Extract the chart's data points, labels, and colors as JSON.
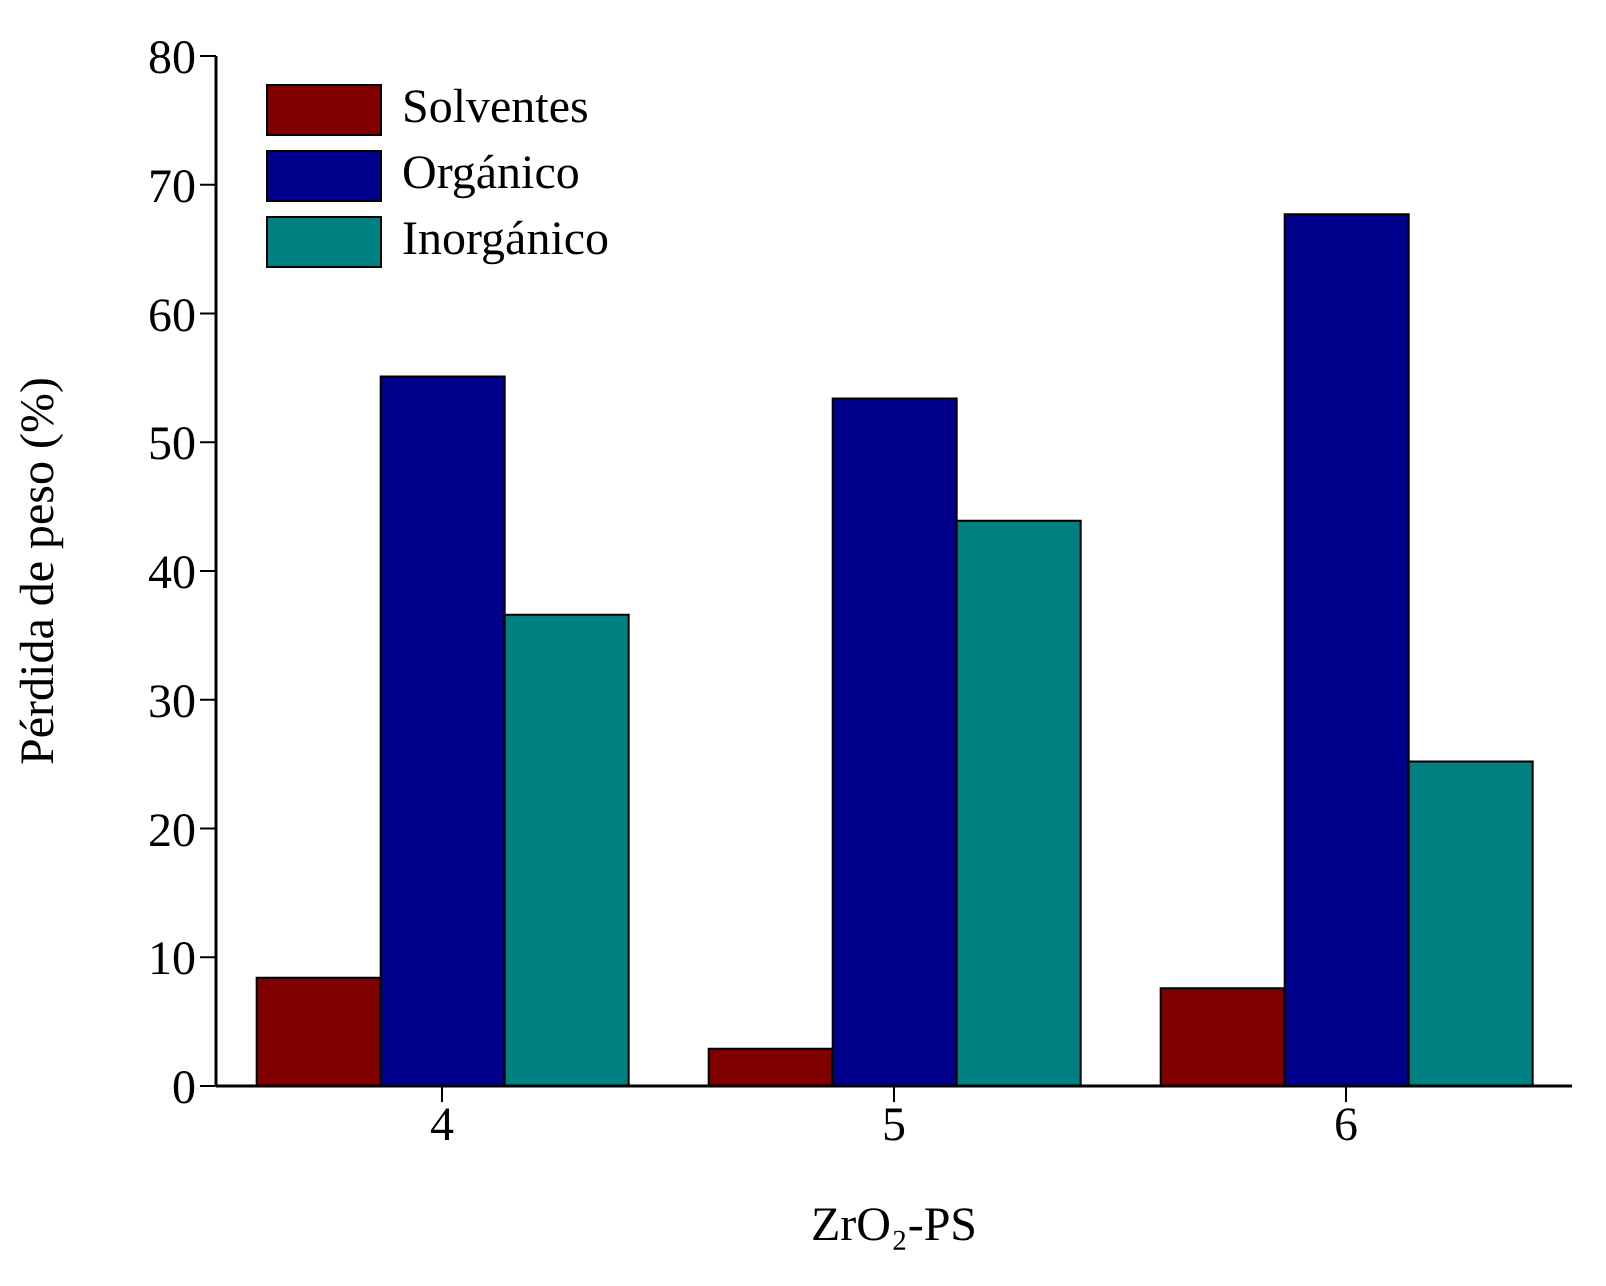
{
  "chart_data": {
    "type": "bar",
    "xlabel": "ZrO₂-PS",
    "ylabel": "Pérdida de peso (%)",
    "categories": [
      "4",
      "5",
      "6"
    ],
    "series": [
      {
        "name": "Solventes",
        "color": "#800000",
        "values": [
          8.4,
          2.9,
          7.6
        ]
      },
      {
        "name": "Orgánico",
        "color": "#00008b",
        "values": [
          55.1,
          53.4,
          67.7
        ]
      },
      {
        "name": "Inorgánico",
        "color": "#008080",
        "values": [
          36.6,
          43.9,
          25.2
        ]
      }
    ],
    "ylim": [
      0,
      80
    ],
    "yticks": [
      0,
      10,
      20,
      30,
      40,
      50,
      60,
      70,
      80
    ],
    "grid": false,
    "legend": "top left"
  }
}
